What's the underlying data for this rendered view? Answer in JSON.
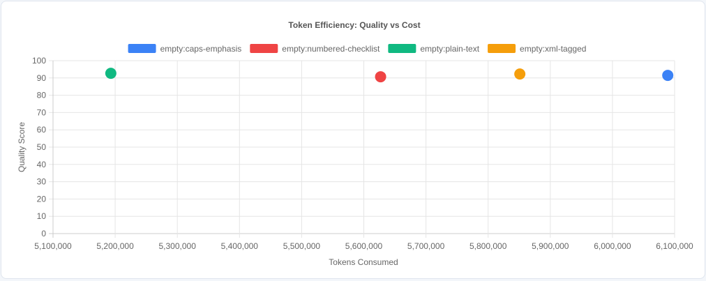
{
  "chart_data": {
    "type": "scatter",
    "title": "Token Efficiency: Quality vs Cost",
    "xlabel": "Tokens Consumed",
    "ylabel": "Quality Score",
    "xlim": [
      5100000,
      6100000
    ],
    "ylim": [
      0,
      100
    ],
    "xticks": [
      "5,100,000",
      "5,200,000",
      "5,300,000",
      "5,400,000",
      "5,500,000",
      "5,600,000",
      "5,700,000",
      "5,800,000",
      "5,900,000",
      "6,000,000",
      "6,100,000"
    ],
    "yticks": [
      "0",
      "10",
      "20",
      "30",
      "40",
      "50",
      "60",
      "70",
      "80",
      "90",
      "100"
    ],
    "grid": true,
    "legend_position": "top",
    "series": [
      {
        "name": "empty:caps-emphasis",
        "color": "#3b82f6",
        "points": [
          {
            "x": 6089000,
            "y": 91.5
          }
        ]
      },
      {
        "name": "empty:numbered-checklist",
        "color": "#ef4444",
        "points": [
          {
            "x": 5627000,
            "y": 90.7
          }
        ]
      },
      {
        "name": "empty:plain-text",
        "color": "#10b981",
        "points": [
          {
            "x": 5193000,
            "y": 92.7
          }
        ]
      },
      {
        "name": "empty:xml-tagged",
        "color": "#f59e0b",
        "points": [
          {
            "x": 5851000,
            "y": 92.3
          }
        ]
      }
    ]
  }
}
